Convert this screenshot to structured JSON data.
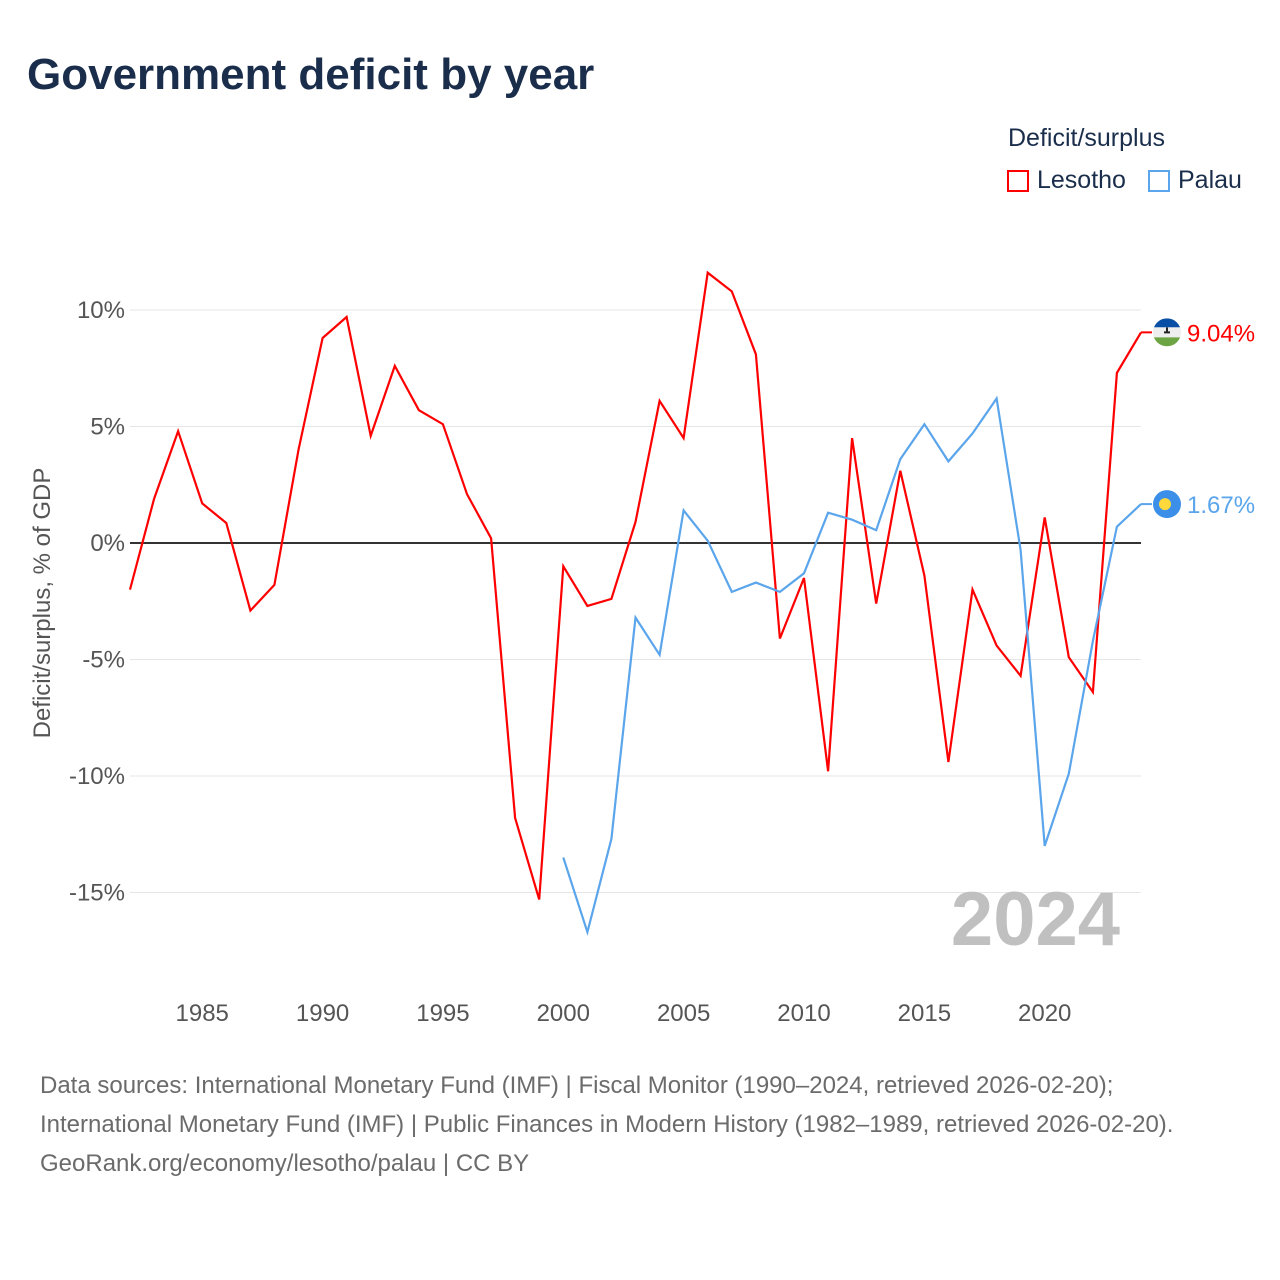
{
  "title": "Government deficit by year",
  "legend": {
    "title": "Deficit/surplus",
    "items": [
      {
        "name": "Lesotho",
        "color": "#ff0000"
      },
      {
        "name": "Palau",
        "color": "#5aa5eb"
      }
    ]
  },
  "watermark_year": "2024",
  "sources": {
    "line1": "Data sources: International Monetary Fund (IMF) | Fiscal Monitor (1990–2024, retrieved 2026-02-20);",
    "line2": "International Monetary Fund (IMF) | Public Finances in Modern History (1982–1989, retrieved 2026-02-20).",
    "line3": "GeoRank.org/economy/lesotho/palau | CC BY"
  },
  "chart_data": {
    "type": "line",
    "title": "Government deficit by year",
    "xlabel": "",
    "ylabel": "Deficit/surplus, % of GDP",
    "xlim": [
      1982,
      2024
    ],
    "ylim": [
      -17.5,
      12.5
    ],
    "x_ticks": [
      1985,
      1990,
      1995,
      2000,
      2005,
      2010,
      2015,
      2020
    ],
    "y_ticks": [
      {
        "v": 10,
        "label": "10%"
      },
      {
        "v": 5,
        "label": "5%"
      },
      {
        "v": 0,
        "label": "0%"
      },
      {
        "v": -5,
        "label": "-5%"
      },
      {
        "v": -10,
        "label": "-10%"
      },
      {
        "v": -15,
        "label": "-15%"
      }
    ],
    "grid": true,
    "legend_position": "top-right",
    "series": [
      {
        "name": "Lesotho",
        "color": "#ff0000",
        "end_label": "9.04%",
        "x_start": 1982,
        "values": [
          -2.0,
          1.9,
          4.8,
          1.7,
          0.86,
          -2.9,
          -1.8,
          4.0,
          8.8,
          9.7,
          4.6,
          7.6,
          5.7,
          5.1,
          2.1,
          0.2,
          -11.8,
          -15.3,
          -1.0,
          -2.7,
          -2.4,
          0.9,
          6.1,
          4.5,
          11.6,
          10.8,
          8.1,
          -4.1,
          -1.5,
          -9.8,
          4.5,
          -2.6,
          3.1,
          -1.4,
          -9.4,
          -2.0,
          -4.4,
          -5.7,
          1.1,
          -4.9,
          -6.4,
          7.3,
          9.04
        ]
      },
      {
        "name": "Palau",
        "color": "#5aa5eb",
        "end_label": "1.67%",
        "x_start": 2000,
        "values": [
          -13.5,
          -16.7,
          -12.7,
          -3.2,
          -4.8,
          1.4,
          0.1,
          -2.1,
          -1.7,
          -2.1,
          -1.3,
          1.3,
          1.0,
          0.55,
          3.6,
          5.1,
          3.5,
          4.7,
          6.2,
          -0.3,
          -13.0,
          -9.9,
          -4.2,
          0.7,
          1.67
        ]
      }
    ]
  }
}
